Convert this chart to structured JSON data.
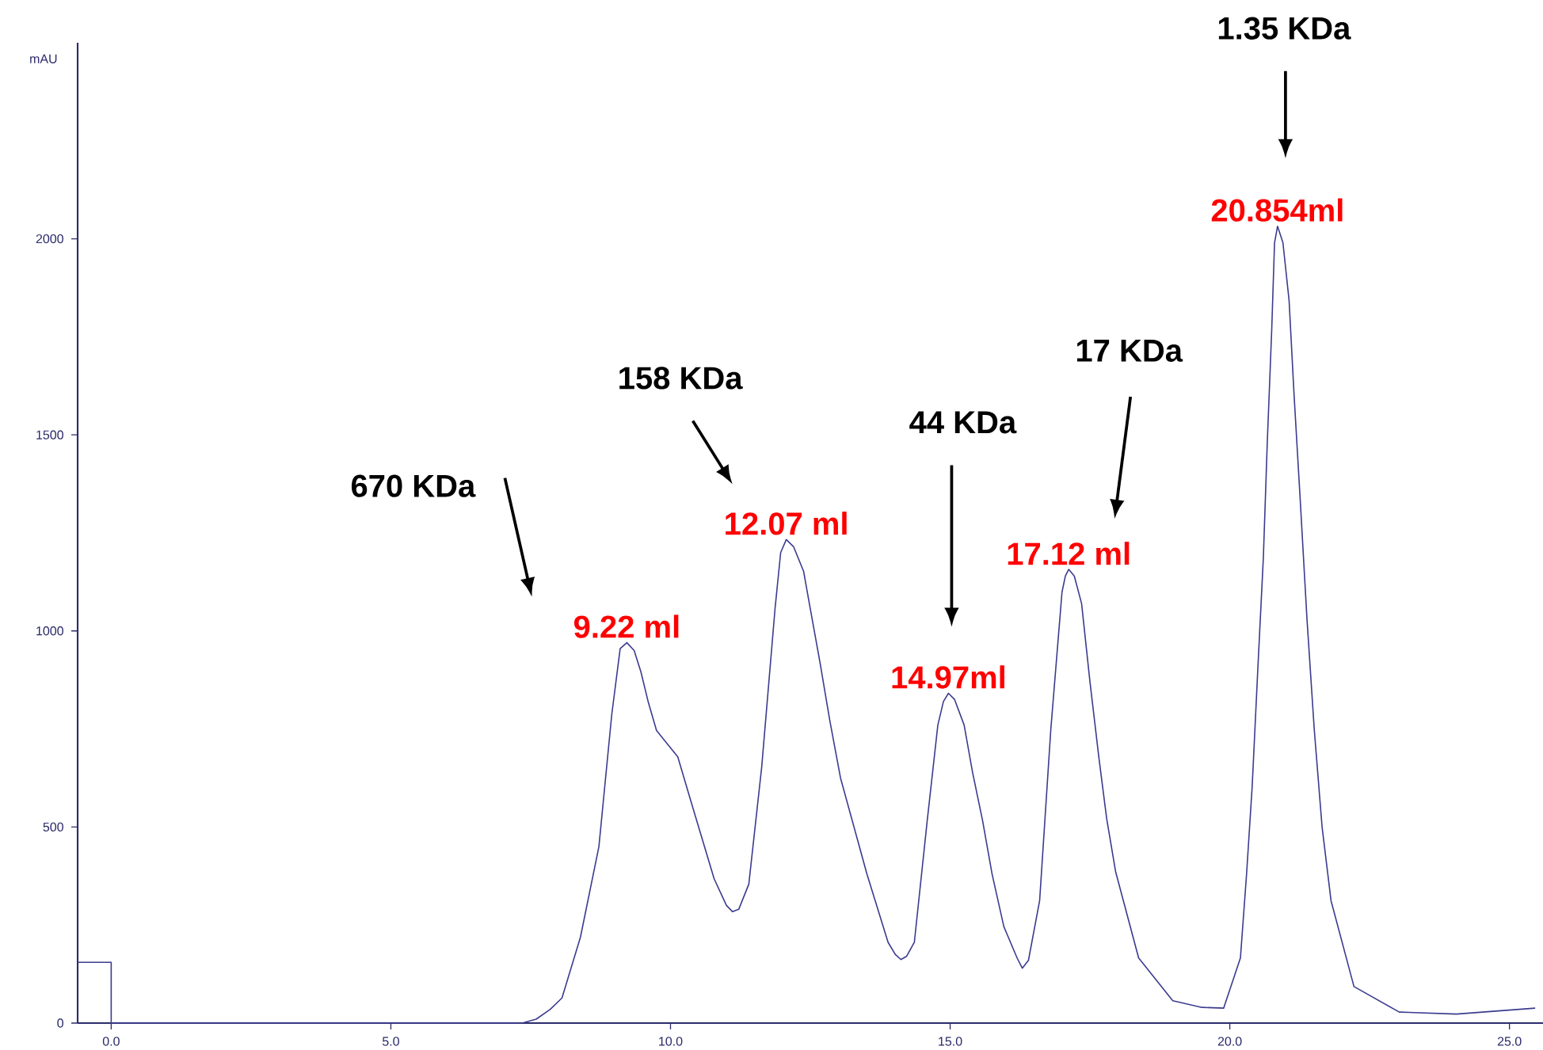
{
  "chart_data": {
    "type": "line",
    "ylabel": "mAU",
    "color": "#3b3b8f",
    "xlim": [
      -0.6,
      25.6
    ],
    "ylim": [
      0,
      2500
    ],
    "xticks": [
      {
        "value": 0,
        "label": "0.0"
      },
      {
        "value": 5,
        "label": "5.0"
      },
      {
        "value": 10,
        "label": "10.0"
      },
      {
        "value": 15,
        "label": "15.0"
      },
      {
        "value": 20,
        "label": "20.0"
      },
      {
        "value": 25,
        "label": "25.0"
      }
    ],
    "yticks": [
      0,
      500,
      1000,
      1500,
      2000
    ],
    "grid": false,
    "marker": "none",
    "line_style": "solid",
    "x": [
      -0.6,
      0,
      0,
      3.5,
      6.46,
      7.35,
      7.6,
      7.85,
      8.06,
      8.39,
      8.72,
      8.95,
      9.1,
      9.22,
      9.35,
      9.47,
      9.6,
      9.75,
      10.13,
      10.41,
      10.78,
      11.0,
      11.11,
      11.22,
      11.4,
      11.63,
      11.87,
      11.97,
      12.07,
      12.2,
      12.38,
      12.52,
      12.67,
      12.85,
      13.04,
      13.51,
      13.89,
      14.02,
      14.12,
      14.22,
      14.36,
      14.59,
      14.78,
      14.88,
      14.97,
      15.08,
      15.25,
      15.4,
      15.58,
      15.75,
      15.96,
      16.2,
      16.29,
      16.4,
      16.6,
      16.8,
      17.0,
      17.06,
      17.12,
      17.22,
      17.35,
      17.5,
      17.66,
      17.8,
      17.96,
      18.37,
      18.98,
      19.5,
      19.89,
      20.19,
      20.3,
      20.4,
      20.5,
      20.6,
      20.67,
      20.75,
      20.8,
      20.854,
      20.95,
      21.06,
      21.15,
      21.26,
      21.38,
      21.51,
      21.65,
      21.81,
      22.22,
      23.03,
      24.05,
      25.46
    ],
    "values": [
      155,
      155,
      0,
      0,
      0,
      0,
      10,
      35,
      64,
      219,
      450,
      787,
      955,
      970,
      950,
      896,
      820,
      746,
      679,
      544,
      368,
      300,
      284,
      290,
      354,
      652,
      1058,
      1200,
      1233,
      1215,
      1152,
      1040,
      922,
      770,
      625,
      381,
      206,
      175,
      162,
      170,
      206,
      516,
      760,
      820,
      841,
      825,
      760,
      640,
      516,
      380,
      246,
      165,
      140,
      160,
      312,
      749,
      1099,
      1140,
      1157,
      1140,
      1070,
      870,
      676,
      520,
      385,
      166,
      57,
      40,
      38,
      166,
      380,
      603,
      900,
      1187,
      1480,
      1770,
      1990,
      2032,
      1990,
      1843,
      1600,
      1332,
      1030,
      749,
      500,
      312,
      93,
      28,
      23,
      38
    ],
    "annotations": [
      "670 KDa",
      {
        "text": "9.22 ml",
        "x": 9.22,
        "y": 970
      },
      "158 KDa",
      {
        "text": "12.07 ml",
        "x": 12.07,
        "y": 1233
      },
      "44 KDa",
      {
        "text": "14.97ml",
        "x": 14.97,
        "y": 841
      },
      "17 KDa",
      {
        "text": "17.12 ml",
        "x": 17.12,
        "y": 1157
      },
      "1.35 KDa",
      {
        "text": "20.854ml",
        "x": 20.854,
        "y": 2032
      }
    ]
  }
}
